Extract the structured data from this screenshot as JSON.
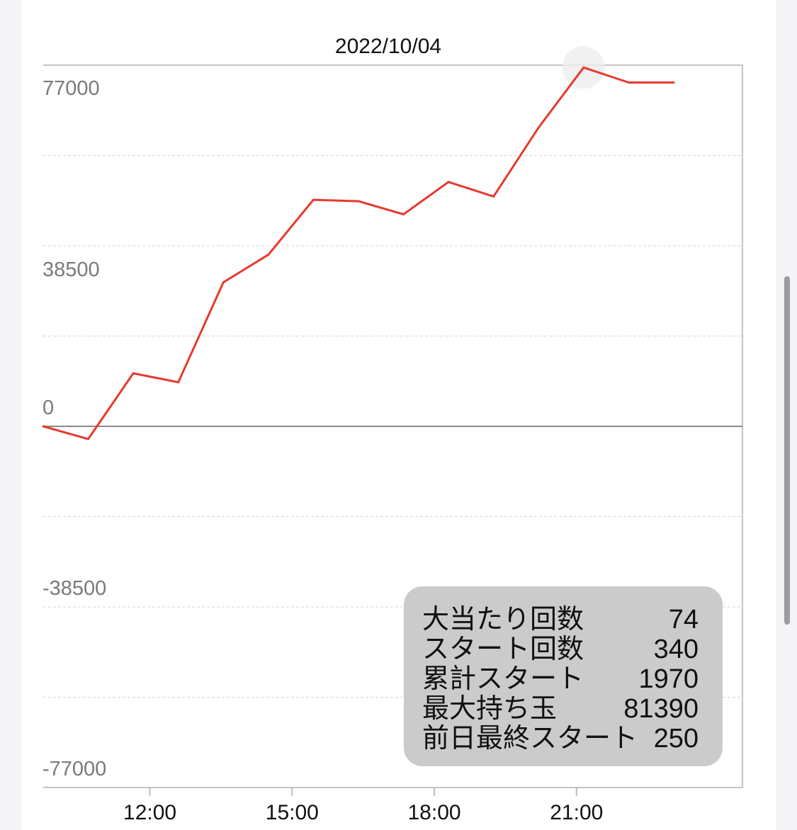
{
  "chart_data": {
    "type": "line",
    "title": "2022/10/04",
    "xlabel": "",
    "ylabel": "",
    "ylim": [
      -77000,
      77000
    ],
    "xlim": [
      "09:45",
      "24:30"
    ],
    "y_tick_labels": [
      "77000",
      "38500",
      "0",
      "-38500",
      "-77000"
    ],
    "y_ticks": [
      77000,
      38500,
      0,
      -38500,
      -77000
    ],
    "x_tick_labels": [
      "12:00",
      "15:00",
      "18:00",
      "21:00"
    ],
    "grid": true,
    "line_color": "#e63a2e",
    "series": [
      {
        "x": [
          "09:45",
          "10:42",
          "11:39",
          "12:36",
          "13:33",
          "14:30",
          "15:27",
          "16:24",
          "17:21",
          "18:18",
          "19:15",
          "20:12",
          "21:09",
          "22:06",
          "23:03"
        ],
        "values": [
          0,
          -2700,
          11300,
          9400,
          30700,
          36600,
          48300,
          48000,
          45200,
          52100,
          49000,
          63700,
          76500,
          73300,
          73300
        ]
      }
    ]
  },
  "stats_box": {
    "rows": [
      {
        "label": "大当たり回数",
        "value": "74"
      },
      {
        "label": "スタート回数",
        "value": "340"
      },
      {
        "label": "累計スタート",
        "value": "1970"
      },
      {
        "label": "最大持ち玉",
        "value": "81390"
      },
      {
        "label": "前日最終スタート",
        "value": "250"
      }
    ]
  }
}
